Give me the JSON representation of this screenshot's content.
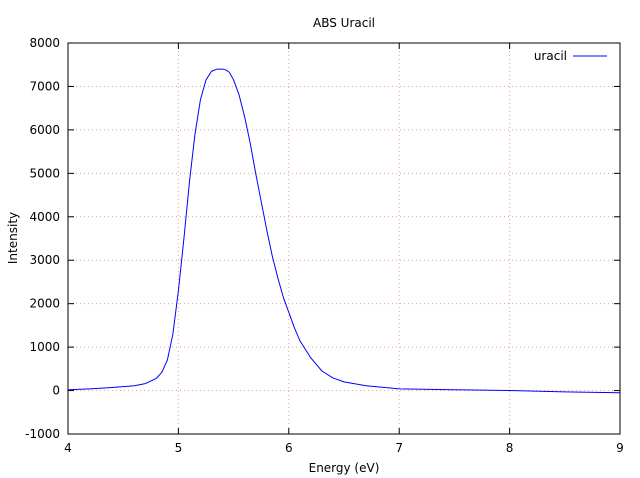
{
  "chart_data": {
    "type": "line",
    "title": "ABS Uracil",
    "xlabel": "Energy (eV)",
    "ylabel": "Intensity",
    "xlim": [
      4,
      9
    ],
    "ylim": [
      -1000,
      8000
    ],
    "xticks": [
      4,
      5,
      6,
      7,
      8,
      9
    ],
    "yticks": [
      -1000,
      0,
      1000,
      2000,
      3000,
      4000,
      5000,
      6000,
      7000,
      8000
    ],
    "grid": true,
    "legend_position": "top-right",
    "series": [
      {
        "name": "uracil",
        "color": "#0000ff",
        "x": [
          4.0,
          4.2,
          4.4,
          4.6,
          4.7,
          4.8,
          4.85,
          4.9,
          4.95,
          5.0,
          5.05,
          5.1,
          5.15,
          5.2,
          5.25,
          5.3,
          5.35,
          5.4,
          5.43,
          5.46,
          5.5,
          5.55,
          5.6,
          5.65,
          5.7,
          5.75,
          5.8,
          5.85,
          5.9,
          5.95,
          6.0,
          6.05,
          6.1,
          6.2,
          6.3,
          6.4,
          6.5,
          6.7,
          7.0,
          7.5,
          8.0,
          8.5,
          9.0
        ],
        "y": [
          20,
          40,
          70,
          110,
          160,
          280,
          420,
          700,
          1300,
          2300,
          3500,
          4800,
          5900,
          6700,
          7150,
          7350,
          7400,
          7400,
          7380,
          7330,
          7150,
          6800,
          6300,
          5700,
          5000,
          4350,
          3700,
          3100,
          2600,
          2150,
          1800,
          1450,
          1150,
          750,
          450,
          290,
          200,
          110,
          40,
          20,
          0,
          -30,
          -50
        ]
      }
    ]
  }
}
